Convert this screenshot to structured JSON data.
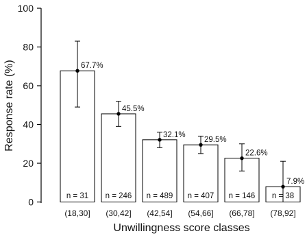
{
  "chart_data": {
    "type": "bar",
    "title": "",
    "xlabel": "Unwillingness score classes",
    "ylabel": "Response rate (%)",
    "ylim": [
      0,
      100
    ],
    "yticks": [
      0,
      20,
      40,
      60,
      80,
      100
    ],
    "grid": false,
    "categories": [
      "(18,30]",
      "(30,42]",
      "(42,54]",
      "(54,66]",
      "(66,78]",
      "(78,92]"
    ],
    "values": [
      67.7,
      45.5,
      32.1,
      29.5,
      22.6,
      7.9
    ],
    "value_labels": [
      "67.7%",
      "45.5%",
      "32.1%",
      "29.5%",
      "22.6%",
      "7.9%"
    ],
    "error_bars": [
      {
        "low": 49,
        "high": 83
      },
      {
        "low": 39,
        "high": 52
      },
      {
        "low": 28,
        "high": 36
      },
      {
        "low": 25,
        "high": 34
      },
      {
        "low": 16,
        "high": 30
      },
      {
        "low": 0,
        "high": 21
      }
    ],
    "n_labels": [
      "n = 31",
      "n = 246",
      "n = 489",
      "n = 407",
      "n = 146",
      "n = 38"
    ],
    "colors": {
      "bar_fill": "#ffffff",
      "bar_stroke": "#000000",
      "marker": "#000000"
    }
  }
}
